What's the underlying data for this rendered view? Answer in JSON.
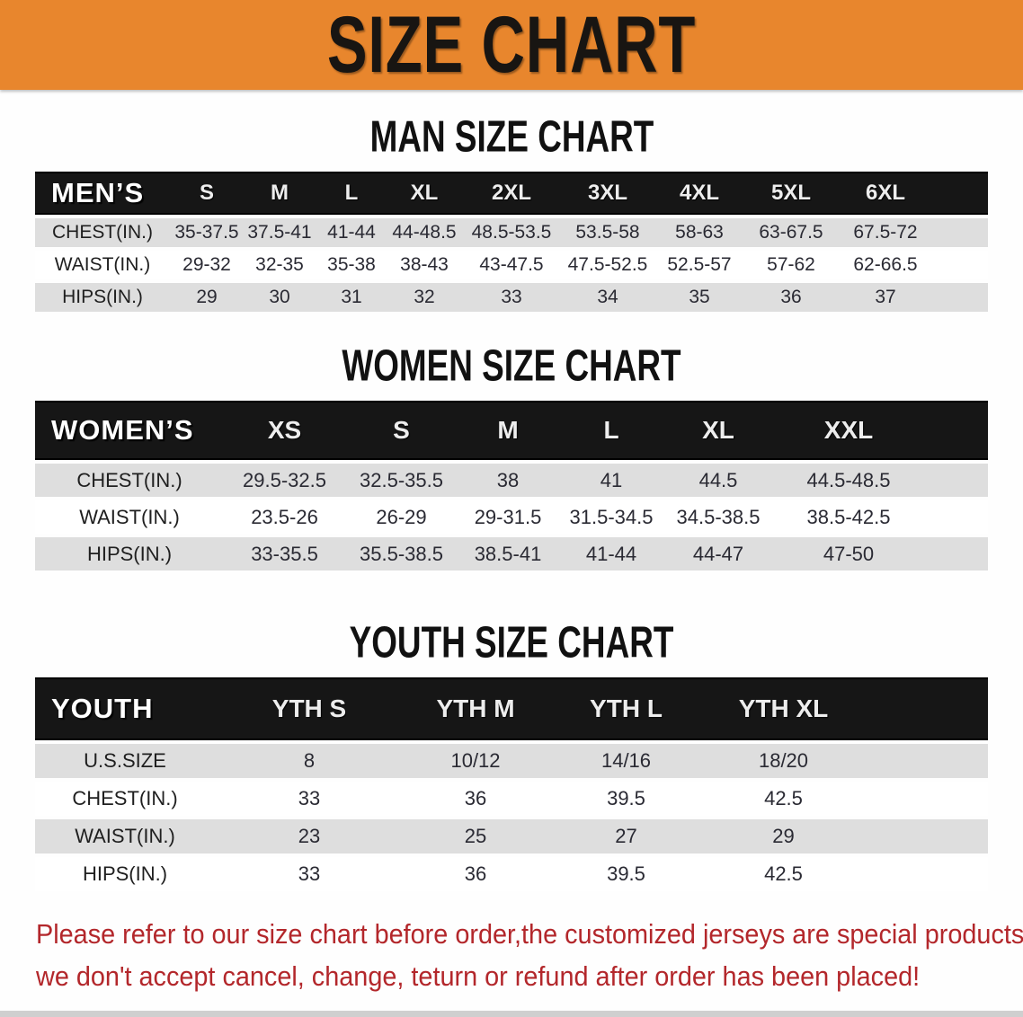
{
  "banner": {
    "title": "SIZE CHART",
    "bg_color": "#e8862d",
    "text_color": "#181512"
  },
  "sections": [
    {
      "title": "MAN SIZE CHART",
      "header_label": "MEN’S",
      "columns": [
        "S",
        "M",
        "L",
        "XL",
        "2XL",
        "3XL",
        "4XL",
        "5XL",
        "6XL"
      ],
      "rows": [
        {
          "label": "CHEST(IN.)",
          "values": [
            "35-37.5",
            "37.5-41",
            "41-44",
            "44-48.5",
            "48.5-53.5",
            "53.5-58",
            "58-63",
            "63-67.5",
            "67.5-72"
          ]
        },
        {
          "label": "WAIST(IN.)",
          "values": [
            "29-32",
            "32-35",
            "35-38",
            "38-43",
            "43-47.5",
            "47.5-52.5",
            "52.5-57",
            "57-62",
            "62-66.5"
          ]
        },
        {
          "label": "HIPS(IN.)",
          "values": [
            "29",
            "30",
            "31",
            "32",
            "33",
            "34",
            "35",
            "36",
            "37"
          ]
        }
      ]
    },
    {
      "title": "WOMEN SIZE CHART",
      "header_label": "WOMEN’S",
      "columns": [
        "XS",
        "S",
        "M",
        "L",
        "XL",
        "XXL"
      ],
      "rows": [
        {
          "label": "CHEST(IN.)",
          "values": [
            "29.5-32.5",
            "32.5-35.5",
            "38",
            "41",
            "44.5",
            "44.5-48.5"
          ]
        },
        {
          "label": "WAIST(IN.)",
          "values": [
            "23.5-26",
            "26-29",
            "29-31.5",
            "31.5-34.5",
            "34.5-38.5",
            "38.5-42.5"
          ]
        },
        {
          "label": "HIPS(IN.)",
          "values": [
            "33-35.5",
            "35.5-38.5",
            "38.5-41",
            "41-44",
            "44-47",
            "47-50"
          ]
        }
      ]
    },
    {
      "title": "YOUTH SIZE CHART",
      "header_label": "YOUTH",
      "columns": [
        "YTH S",
        "YTH M",
        "YTH L",
        "YTH XL"
      ],
      "rows": [
        {
          "label": "U.S.SIZE",
          "values": [
            "8",
            "10/12",
            "14/16",
            "18/20"
          ]
        },
        {
          "label": "CHEST(IN.)",
          "values": [
            "33",
            "36",
            "39.5",
            "42.5"
          ]
        },
        {
          "label": "WAIST(IN.)",
          "values": [
            "23",
            "25",
            "27",
            "29"
          ]
        },
        {
          "label": "HIPS(IN.)",
          "values": [
            "33",
            "36",
            "39.5",
            "42.5"
          ]
        }
      ]
    }
  ],
  "disclaimer": {
    "line1": "Please refer to our size chart before order,the customized jerseys are special products,",
    "line2": "we don't accept cancel, change, teturn or refund after order has been placed!",
    "text_color": "#b3272b"
  },
  "table_colors": {
    "band_bg": "#161616",
    "striped_row_bg": "#dedede",
    "plain_row_bg": "#ffffff"
  }
}
